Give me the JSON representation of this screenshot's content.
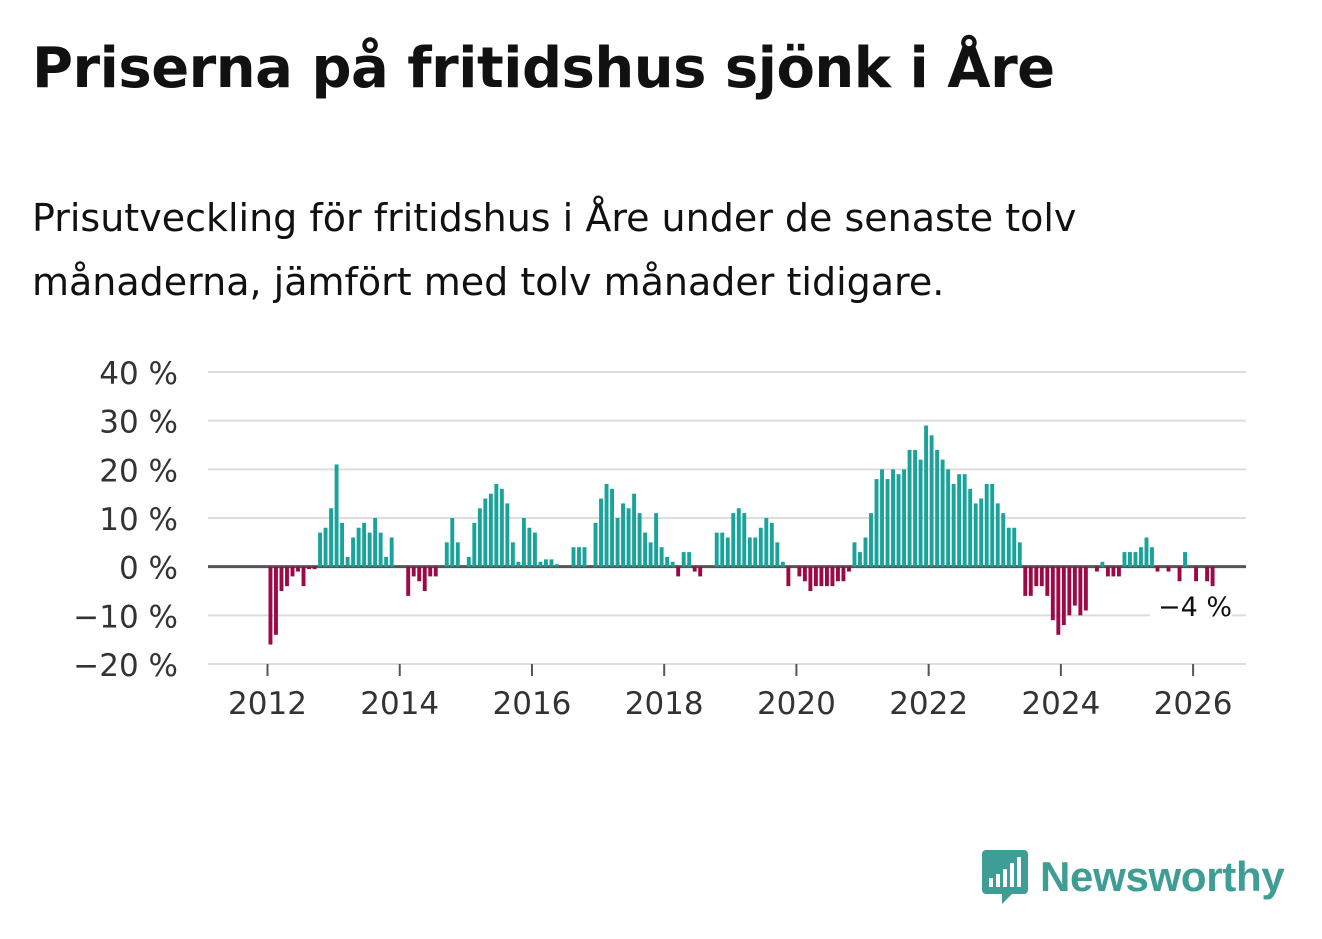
{
  "header": {
    "title": "Priserna på fritidshus sjönk i Åre",
    "subtitle": "Prisutveckling för fritidshus i Åre under de senaste tolv månaderna, jämfört med tolv månader tidigare."
  },
  "brand": {
    "name": "Newsworthy"
  },
  "colors": {
    "positive": "#1aa39b",
    "negative": "#9b0a47",
    "grid": "#dddddd",
    "zero_line": "#555555",
    "brand": "#3e9d94"
  },
  "chart_data": {
    "type": "bar",
    "title": "Priserna på fritidshus sjönk i Åre",
    "xlabel": "",
    "ylabel": "",
    "ylim": [
      -20,
      40
    ],
    "xlim": [
      2011.1,
      2026.8
    ],
    "grid": true,
    "y_ticks": [
      {
        "value": 40,
        "label": "40 %"
      },
      {
        "value": 30,
        "label": "30 %"
      },
      {
        "value": 20,
        "label": "20 %"
      },
      {
        "value": 10,
        "label": "10 %"
      },
      {
        "value": 0,
        "label": "0 %"
      },
      {
        "value": -10,
        "label": "−10 %"
      },
      {
        "value": -20,
        "label": "−20 %"
      }
    ],
    "x_ticks": [
      {
        "value": 2012,
        "label": "2012"
      },
      {
        "value": 2014,
        "label": "2014"
      },
      {
        "value": 2016,
        "label": "2016"
      },
      {
        "value": 2018,
        "label": "2018"
      },
      {
        "value": 2020,
        "label": "2020"
      },
      {
        "value": 2022,
        "label": "2022"
      },
      {
        "value": 2024,
        "label": "2024"
      },
      {
        "value": 2026,
        "label": "2026"
      }
    ],
    "start_year": 2012,
    "start_month": 1,
    "values": [
      -16,
      -14,
      -5,
      -4,
      -2,
      -1,
      -4,
      -0.5,
      -0.5,
      7,
      8,
      12,
      21,
      9,
      2,
      6,
      8,
      9,
      7,
      10,
      7,
      2,
      6,
      0,
      0,
      -6,
      -2,
      -3,
      -5,
      -2,
      -2,
      0,
      5,
      10,
      5,
      0,
      2,
      9,
      12,
      14,
      15,
      17,
      16,
      13,
      5,
      1,
      10,
      8,
      7,
      1,
      1.5,
      1.5,
      0.5,
      0,
      0,
      4,
      4,
      4,
      0,
      9,
      14,
      17,
      16,
      10,
      13,
      12,
      15,
      11,
      7,
      5,
      11,
      4,
      2,
      1,
      -2,
      3,
      3,
      -1,
      -2,
      0,
      0,
      7,
      7,
      6,
      11,
      12,
      11,
      6,
      6,
      8,
      10,
      9,
      5,
      1,
      -4,
      0,
      -2,
      -3,
      -5,
      -4,
      -4,
      -4,
      -4,
      -3,
      -3,
      -1,
      5,
      3,
      6,
      11,
      18,
      20,
      18,
      20,
      19,
      20,
      24,
      24,
      22,
      29,
      27,
      24,
      22,
      20,
      17,
      19,
      19,
      16,
      13,
      14,
      17,
      17,
      13,
      11,
      8,
      8,
      5,
      -6,
      -6,
      -4,
      -4,
      -6,
      -11,
      -14,
      -12,
      -10,
      -8,
      -10,
      -9,
      0,
      -1,
      1,
      -2,
      -2,
      -2,
      3,
      3,
      3,
      4,
      6,
      4,
      -1,
      0,
      -1,
      0,
      -3,
      3,
      0,
      -3,
      0,
      -3,
      -4
    ],
    "annotation": {
      "label": "−4 %",
      "value": -4
    }
  }
}
